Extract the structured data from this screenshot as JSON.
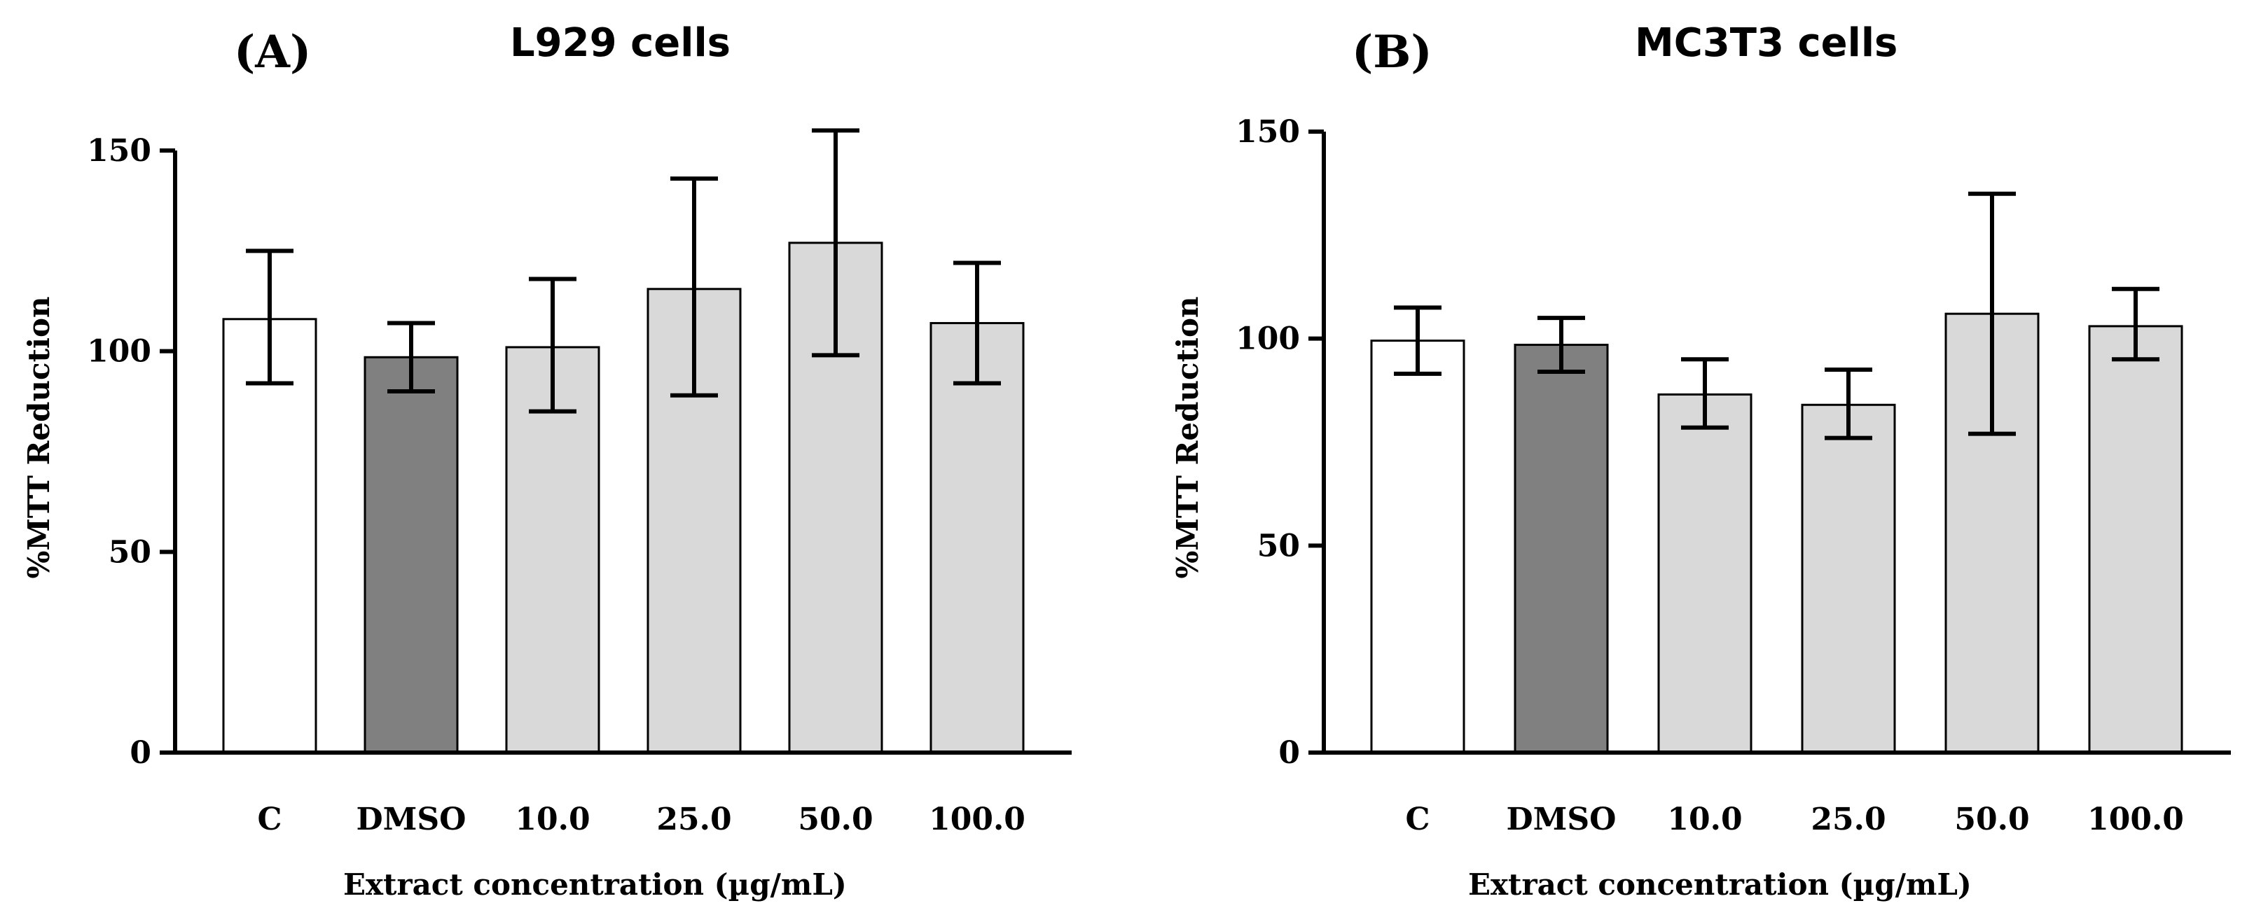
{
  "colors": {
    "C": "#ffffff",
    "DMSO": "#808080",
    "extract": "#d9d9d9",
    "stroke": "#000000"
  },
  "chart_data": [
    {
      "type": "bar",
      "panel": "(A)",
      "title": "L929 cells",
      "xlabel": "Extract concentration (µg/mL)",
      "ylabel": "%MTT Reduction",
      "ylim": [
        0,
        150
      ],
      "yticks": [
        0,
        50,
        100,
        150
      ],
      "categories": [
        "C",
        "DMSO",
        "10.0",
        "25.0",
        "50.0",
        "100.0"
      ],
      "values": [
        108,
        98.5,
        101,
        115.5,
        127,
        107
      ],
      "err_low": [
        92,
        90,
        85,
        89,
        99,
        92
      ],
      "err_high": [
        125,
        107,
        118,
        143,
        155,
        122
      ]
    },
    {
      "type": "bar",
      "panel": "(B)",
      "title": "MC3T3 cells",
      "xlabel": "Extract concentration (µg/mL)",
      "ylabel": "%MTT Reduction",
      "ylim": [
        0,
        150
      ],
      "yticks": [
        0,
        50,
        100,
        150
      ],
      "categories": [
        "C",
        "DMSO",
        "10.0",
        "25.0",
        "50.0",
        "100.0"
      ],
      "values": [
        99.5,
        98.5,
        86.5,
        84,
        106,
        103
      ],
      "err_low": [
        91.5,
        92,
        78.5,
        76,
        77,
        95
      ],
      "err_high": [
        107.5,
        105,
        95,
        92.5,
        135,
        112
      ]
    }
  ]
}
